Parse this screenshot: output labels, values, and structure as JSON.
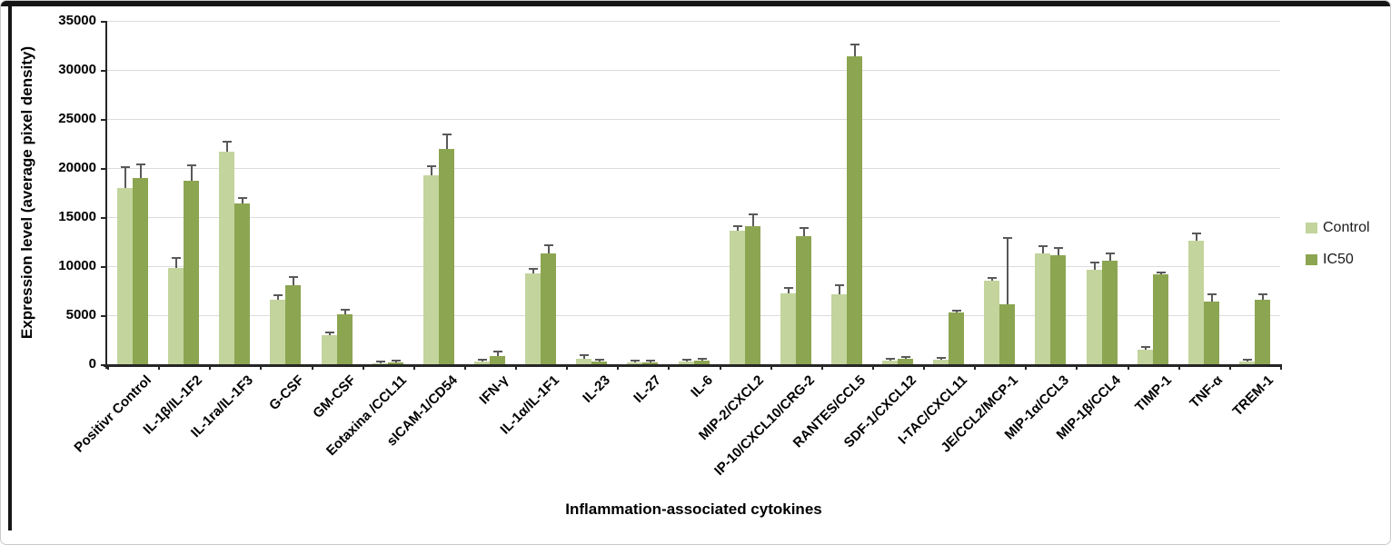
{
  "figure": {
    "title": "",
    "y_axis_title": "Expression level (average pixel density)",
    "x_axis_title": "Inflammation-associated cytokines"
  },
  "colors": {
    "control_fill": "#c3d49c",
    "ic50_fill": "#8ca551",
    "error_bar": "#595959",
    "gridline": "#dcdcdc",
    "axis": "#262626",
    "figure_border": "#161616",
    "canvas_border": "#c9c9c9"
  },
  "chart_data": {
    "type": "bar",
    "title": "",
    "xlabel": "Inflammation-associated cytokines",
    "ylabel": "Expression level (average pixel density)",
    "ylim": [
      0,
      35000
    ],
    "ytick_step": 5000,
    "ytick_labels": [
      "0",
      "5000",
      "10000",
      "15000",
      "20000",
      "25000",
      "30000",
      "35000"
    ],
    "grid": true,
    "legend_position": "right",
    "categories": [
      "Positivr Control",
      "IL-1β/IL-1F2",
      "IL-1ra/IL-1F3",
      "G-CSF",
      "GM-CSF",
      "Eotaxina /CCL11",
      "sICAM-1/CD54",
      "IFN-γ",
      "IL-1α/IL-1F1",
      "IL-23",
      "IL-27",
      "IL-6",
      "MIP-2/CXCL2",
      "IP-10/CXCL10/CRG-2",
      "RANTES/CCL5",
      "SDF-1/CXCL12",
      "I-TAC/CXCL11",
      "JE/CCL2/MCP-1",
      "MIP-1α/CCL3",
      "MIP-1β/CCL4",
      "TIMP-1",
      "TNF-α",
      "TREM-1"
    ],
    "series": [
      {
        "name": "Control",
        "color": "#c3d49c",
        "values": [
          18000,
          9800,
          21700,
          6600,
          3000,
          100,
          19300,
          250,
          9300,
          550,
          180,
          250,
          13600,
          7200,
          7100,
          400,
          500,
          8500,
          11300,
          9600,
          1500,
          12600,
          250
        ],
        "errors": [
          2100,
          1000,
          1000,
          500,
          250,
          80,
          900,
          150,
          500,
          400,
          80,
          100,
          500,
          600,
          900,
          150,
          150,
          250,
          700,
          700,
          250,
          700,
          100
        ]
      },
      {
        "name": "IC50",
        "color": "#8ca551",
        "values": [
          19000,
          18700,
          16400,
          8100,
          5100,
          150,
          21900,
          850,
          11300,
          280,
          150,
          350,
          14100,
          13100,
          31400,
          600,
          5300,
          6100,
          11100,
          10600,
          9200,
          6400,
          6600
        ],
        "errors": [
          1350,
          1600,
          600,
          800,
          500,
          80,
          1500,
          450,
          800,
          80,
          60,
          100,
          1200,
          800,
          1200,
          150,
          200,
          6800,
          700,
          700,
          150,
          700,
          600
        ]
      }
    ]
  }
}
